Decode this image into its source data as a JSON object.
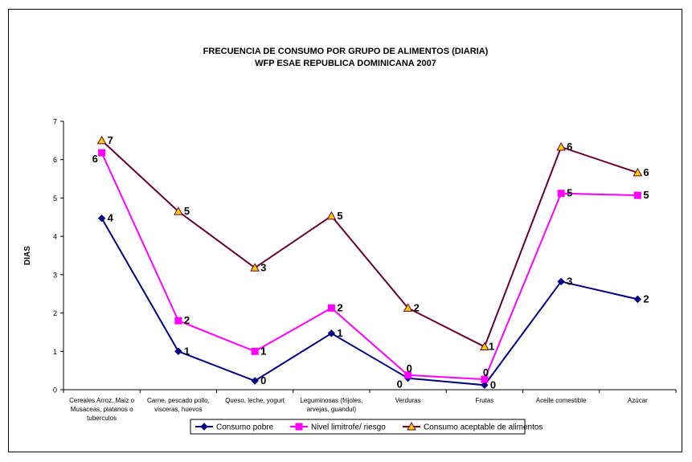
{
  "chart_data": {
    "type": "line",
    "title": "FRECUENCIA DE CONSUMO POR GRUPO DE ALIMENTOS (DIARIA)",
    "subtitle": "WFP ESAE REPUBLICA DOMINICANA 2007",
    "xlabel": "",
    "ylabel": "DIAS",
    "ylim": [
      0,
      7
    ],
    "yticks": [
      "0",
      "1",
      "2",
      "3",
      "4",
      "5",
      "6",
      "7"
    ],
    "grid": false,
    "legend_position": "bottom",
    "categories": [
      [
        "Cereales Arroz, Maiz o",
        "Musaceas, platanos o",
        "tuberculos"
      ],
      [
        "Carne, pescado pollo,",
        "visceras, huevos"
      ],
      [
        "Queso, leche, yogurt"
      ],
      [
        "Leguminosas (frijoles,",
        "arvejas, guandul)"
      ],
      [
        "Verduras"
      ],
      [
        "Frutas"
      ],
      [
        "Aceite comestible"
      ],
      [
        "Azúcar"
      ]
    ],
    "series": [
      {
        "name": "Consumo pobre",
        "color": "#000080",
        "marker": "diamond",
        "values": [
          4.47,
          1.0,
          0.23,
          1.47,
          0.3,
          0.12,
          2.82,
          2.36
        ],
        "labels": [
          "4",
          "1",
          "0",
          "1",
          "0",
          "0",
          "3",
          "2"
        ]
      },
      {
        "name": "Nivel limitrofe/ riesgo",
        "color": "#ff00ff",
        "marker": "square",
        "values": [
          6.18,
          1.8,
          1.0,
          2.13,
          0.38,
          0.27,
          5.12,
          5.07
        ],
        "labels": [
          "6",
          "2",
          "1",
          "2",
          "0",
          "0",
          "5",
          "5"
        ]
      },
      {
        "name": "Consumo aceptable de alimentos",
        "color": "#660033",
        "marker": "triangle",
        "marker_fill": "#ffcc00",
        "values": [
          6.5,
          4.65,
          3.18,
          4.53,
          2.13,
          1.12,
          6.33,
          5.66
        ],
        "labels": [
          "7",
          "5",
          "3",
          "5",
          "2",
          "1",
          "6",
          "6"
        ]
      }
    ]
  }
}
